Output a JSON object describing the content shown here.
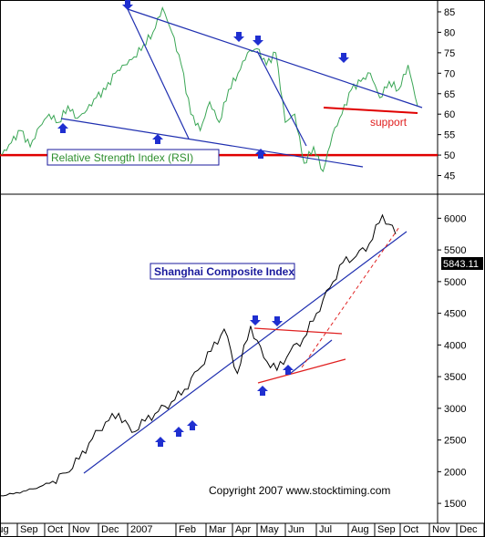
{
  "colors": {
    "rsi_line": "#3aa655",
    "price_line": "#000000",
    "trend_blue": "#1f2fb0",
    "trend_red": "#e02020",
    "arrow": "#1f2fd0",
    "label_box": "#1a1a9c"
  },
  "icons": {
    "arrow_up": "arrow-up-icon",
    "arrow_down": "arrow-down-icon"
  },
  "copyright": "Copyright 2007 www.stocktiming.com",
  "chart_data": [
    {
      "type": "line",
      "title": "Relative Strength Index (RSI)",
      "y_ticks": [
        "85",
        "80",
        "75",
        "70",
        "65",
        "60",
        "55",
        "50",
        "45"
      ],
      "ylim": [
        42,
        87
      ],
      "reference_line": 50,
      "support_label": "support",
      "grid": false,
      "series": [
        {
          "x": [
            "Jul",
            "Jul",
            "Aug",
            "Aug",
            "Aug",
            "Sep",
            "Sep",
            "Sep",
            "Oct",
            "Oct",
            "Oct",
            "Nov",
            "Nov",
            "Nov",
            "Dec",
            "Dec",
            "Dec",
            "Jan",
            "Jan",
            "Jan",
            "Feb",
            "Feb",
            "Mar",
            "Mar",
            "Apr",
            "Apr",
            "Apr",
            "May",
            "May",
            "May",
            "Jun",
            "Jun",
            "Jun",
            "Jul",
            "Jul",
            "Jul",
            "Aug",
            "Aug",
            "Aug",
            "Sep",
            "Sep",
            "Sep",
            "Oct",
            "Oct",
            "Oct"
          ],
          "values": [
            50,
            53,
            56,
            52,
            57,
            60,
            58,
            62,
            59,
            61,
            64,
            66,
            70,
            72,
            74,
            77,
            80,
            86,
            80,
            72,
            60,
            56,
            63,
            58,
            66,
            70,
            75,
            76,
            72,
            75,
            58,
            60,
            48,
            52,
            46,
            55,
            60,
            66,
            68,
            70,
            64,
            68,
            66,
            72,
            62
          ]
        }
      ]
    },
    {
      "type": "line",
      "title": "Shanghai Composite Index",
      "x_ticks": [
        "Aug",
        "Sep",
        "Oct",
        "Nov",
        "Dec",
        "2007",
        "Feb",
        "Mar",
        "Apr",
        "May",
        "Jun",
        "Jul",
        "Aug",
        "Sep",
        "Oct",
        "Nov",
        "Dec"
      ],
      "y_ticks": [
        "6000",
        "5500",
        "5000",
        "4500",
        "4000",
        "3500",
        "3000",
        "2500",
        "2000",
        "1500"
      ],
      "ylim": [
        1300,
        6250
      ],
      "last_value": "5843.11",
      "grid": false,
      "series": [
        {
          "x": [
            "Jul",
            "Aug",
            "Sep",
            "Oct",
            "Nov",
            "Nov",
            "Dec",
            "Dec",
            "Jan",
            "Jan",
            "Feb",
            "Feb",
            "Mar",
            "Mar",
            "Apr",
            "Apr",
            "May",
            "May",
            "Jun",
            "Jun",
            "Jun",
            "Jul",
            "Jul",
            "Jul",
            "Aug",
            "Aug",
            "Sep",
            "Sep",
            "Oct",
            "Oct",
            "Oct"
          ],
          "values": [
            1620,
            1650,
            1700,
            1760,
            1850,
            1980,
            2200,
            2520,
            2780,
            2920,
            2620,
            2800,
            2950,
            3100,
            3300,
            3600,
            3900,
            4250,
            3550,
            4300,
            3800,
            3600,
            3900,
            4100,
            4500,
            4900,
            5300,
            5400,
            5600,
            6050,
            5750
          ]
        }
      ]
    }
  ]
}
